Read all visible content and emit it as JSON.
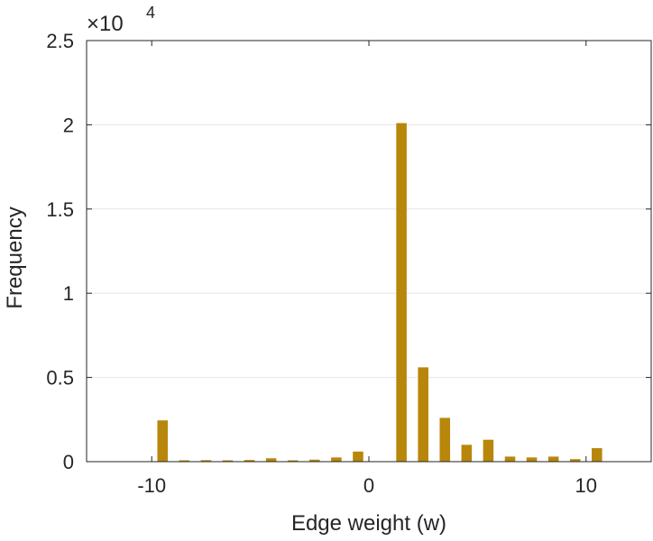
{
  "chart_data": {
    "type": "bar",
    "title": "",
    "xlabel": "Edge weight (w)",
    "ylabel": "Frequency",
    "xlim": [
      -13,
      13
    ],
    "ylim": [
      0,
      25000
    ],
    "x_ticks": [
      -10,
      0,
      10
    ],
    "x_tick_labels": [
      "-10",
      "0",
      "10"
    ],
    "y_ticks": [
      0,
      5000,
      10000,
      15000,
      20000,
      25000
    ],
    "y_tick_labels": [
      "0",
      "0.5",
      "1",
      "1.5",
      "2",
      "2.5"
    ],
    "y_multiplier": {
      "base": "×10",
      "exponent": "4"
    },
    "grid": true,
    "legend": "none",
    "bar_color": "#b8860b",
    "x": [
      -10,
      -9,
      -8,
      -7,
      -6,
      -5,
      -4,
      -3,
      -2,
      -1,
      0,
      1,
      2,
      3,
      4,
      5,
      6,
      7,
      8,
      9,
      10
    ],
    "values": [
      2450,
      80,
      90,
      80,
      100,
      200,
      80,
      120,
      250,
      600,
      0,
      20100,
      5600,
      2600,
      1000,
      1300,
      300,
      250,
      300,
      150,
      800
    ]
  }
}
